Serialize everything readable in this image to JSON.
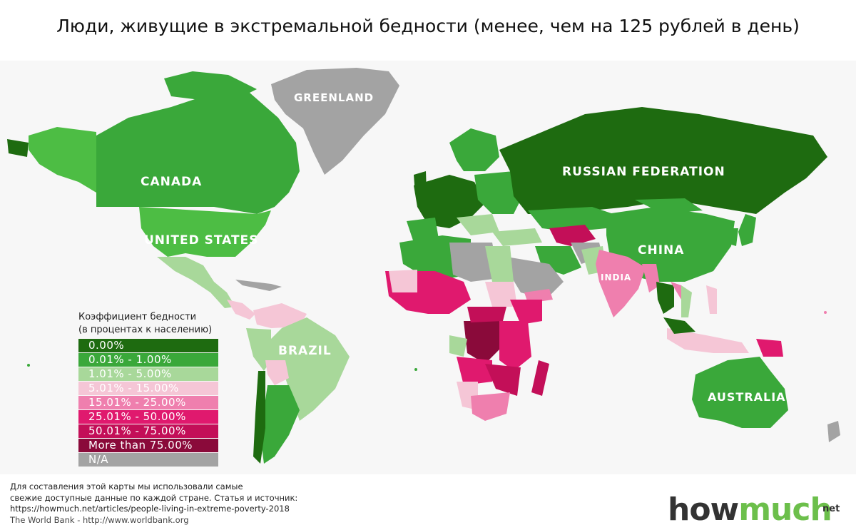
{
  "title": "Люди, живущие в экстремальной бедности (менее, чем на 125 рублей в день)",
  "country_labels": {
    "greenland": "GREENLAND",
    "canada": "CANADA",
    "united_states": "UNITED STATES",
    "russia": "RUSSIAN FEDERATION",
    "china": "CHINA",
    "india": "INDIA",
    "brazil": "BRAZIL",
    "australia": "AUSTRALIA"
  },
  "legend": {
    "title_line1": "Коэффициент бедности",
    "title_line2": "(в процентах к населению)",
    "items": [
      {
        "label": "0.00%",
        "color": "#1e6b10"
      },
      {
        "label": "0.01% - 1.00%",
        "color": "#3aa83a"
      },
      {
        "label": "1.01% - 5.00%",
        "color": "#a8d89a"
      },
      {
        "label": "5.01% - 15.00%",
        "color": "#f5c6d6"
      },
      {
        "label": "15.01% - 25.00%",
        "color": "#ef7fae"
      },
      {
        "label": "25.01% - 50.00%",
        "color": "#e0196e"
      },
      {
        "label": "50.01% - 75.00%",
        "color": "#c30f58"
      },
      {
        "label": "More than 75.00%",
        "color": "#8a0a3a"
      },
      {
        "label": "N/A",
        "color": "#a3a3a3"
      }
    ]
  },
  "footnote": {
    "line1": "Для составления этой карты мы использовали самые",
    "line2": "свежие доступные данные по каждой стране. Статья и источник:",
    "line3": "https://howmuch.net/articles/people-living-in-extreme-poverty-2018",
    "line4": "The World Bank - http://www.worldbank.org"
  },
  "logo": {
    "how": "how",
    "much": "much",
    "suffix": "net"
  }
}
